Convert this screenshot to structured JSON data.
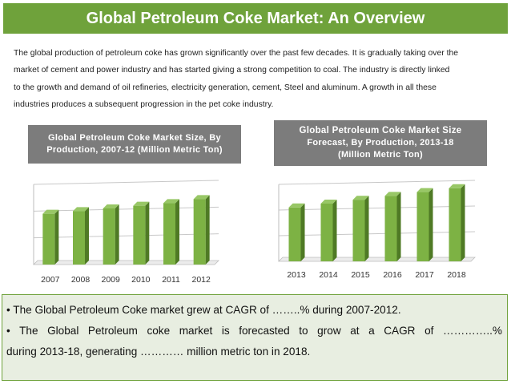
{
  "header": {
    "title": "Global Petroleum Coke Market: An Overview"
  },
  "intro": {
    "lines": [
      "The global production of petroleum coke has grown significantly over the past few decades. It is gradually taking over the",
      "market of cement and power industry and has started giving a strong competition to coal. The industry is directly linked",
      "to the growth and demand of oil refineries, electricity generation, cement, Steel and aluminum. A growth in all these",
      "industries produces a subsequent progression in the pet coke industry."
    ]
  },
  "bullets": {
    "b1": "• The Global Petroleum Coke market grew at CAGR of ……..% during 2007-2012.",
    "b2_line1": "• The Global Petroleum coke market is forecasted to grow at a CAGR of …………..%",
    "b2_line2": "during 2013-18, generating ………… million metric ton in 2018."
  },
  "colors": {
    "title_bar": "#6fa23b",
    "bar_fill": "#7db244",
    "bar_side": "#4f7a25",
    "chart_header_bg": "#7c7c7c",
    "bottom_box_bg": "#e8eee1"
  },
  "chart_data": [
    {
      "type": "bar",
      "title_line1": "Global Petroleum Coke Market Size, By",
      "title_line2": "Production, 2007-12 (Million Metric Ton)",
      "categories": [
        "2007",
        "2008",
        "2009",
        "2010",
        "2011",
        "2012"
      ],
      "values": [
        1.9,
        2.0,
        2.1,
        2.2,
        2.3,
        2.45
      ],
      "ylim": [
        0,
        3
      ],
      "grid": true,
      "data_labels": false,
      "xlabel": "",
      "ylabel": ""
    },
    {
      "type": "bar",
      "title_line1": "Global Petroleum Coke Market Size",
      "title_line2": "Forecast, By Production, 2013-18",
      "title_line3": "(Million Metric Ton)",
      "categories": [
        "2013",
        "2014",
        "2015",
        "2016",
        "2017",
        "2018"
      ],
      "values": [
        2.1,
        2.25,
        2.4,
        2.55,
        2.7,
        2.85
      ],
      "ylim": [
        0,
        3
      ],
      "grid": true,
      "data_labels": false,
      "xlabel": "",
      "ylabel": ""
    }
  ]
}
